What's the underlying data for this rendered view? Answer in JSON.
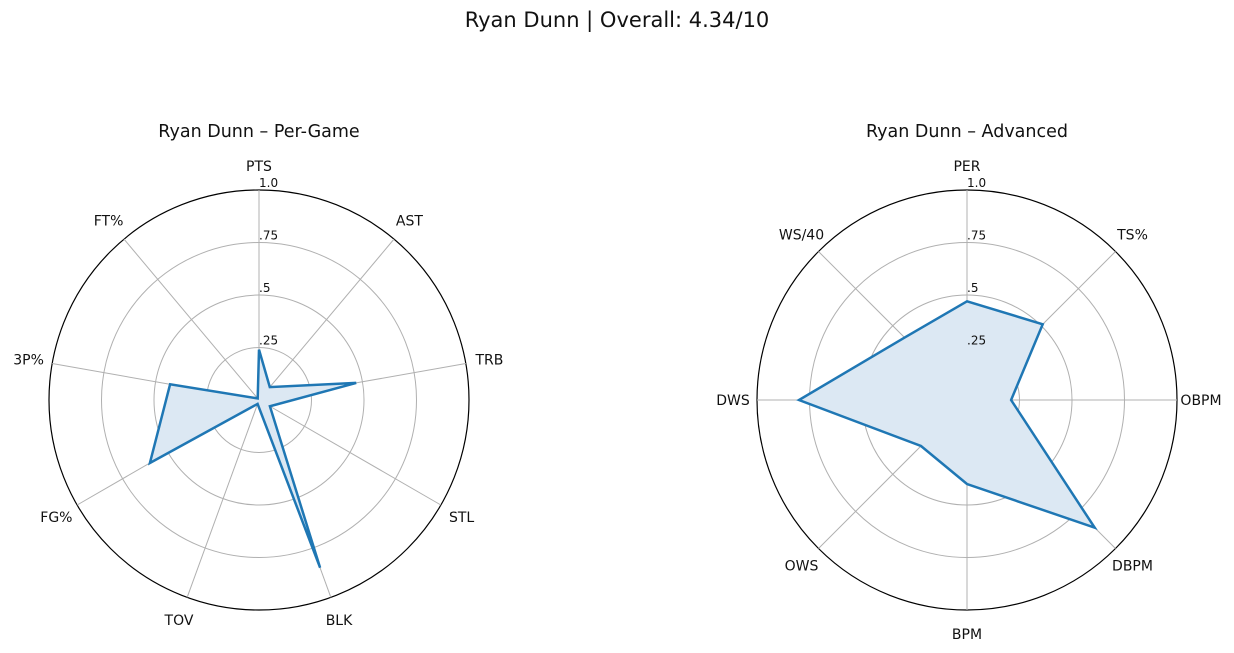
{
  "figure": {
    "title": "Ryan Dunn | Overall: 4.34/10"
  },
  "colors": {
    "series_line": "#1f77b4",
    "series_fill": "#dce8f3",
    "grid": "#b0b0b0",
    "outer_ring": "#000000"
  },
  "chart_data": [
    {
      "type": "radar",
      "title": "Ryan Dunn – Per-Game",
      "categories": [
        "PTS",
        "AST",
        "TRB",
        "STL",
        "BLK",
        "TOV",
        "FG%",
        "3P%",
        "FT%"
      ],
      "values": [
        0.24,
        0.08,
        0.47,
        0.06,
        0.85,
        0.02,
        0.6,
        0.43,
        0.01
      ],
      "rlim": [
        0,
        1
      ],
      "rticks": [
        0.25,
        0.5,
        0.75,
        1.0
      ],
      "rtick_labels": [
        ".25",
        ".5",
        ".75",
        "1.0"
      ],
      "grid": true
    },
    {
      "type": "radar",
      "title": "Ryan Dunn – Advanced",
      "categories": [
        "PER",
        "TS%",
        "OBPM",
        "DBPM",
        "BPM",
        "OWS",
        "DWS",
        "WS/40"
      ],
      "values": [
        0.47,
        0.51,
        0.21,
        0.86,
        0.4,
        0.31,
        0.8,
        0.42
      ],
      "rlim": [
        0,
        1
      ],
      "rticks": [
        0.25,
        0.5,
        0.75,
        1.0
      ],
      "rtick_labels": [
        ".25",
        ".5",
        ".75",
        "1.0"
      ],
      "grid": true
    }
  ]
}
